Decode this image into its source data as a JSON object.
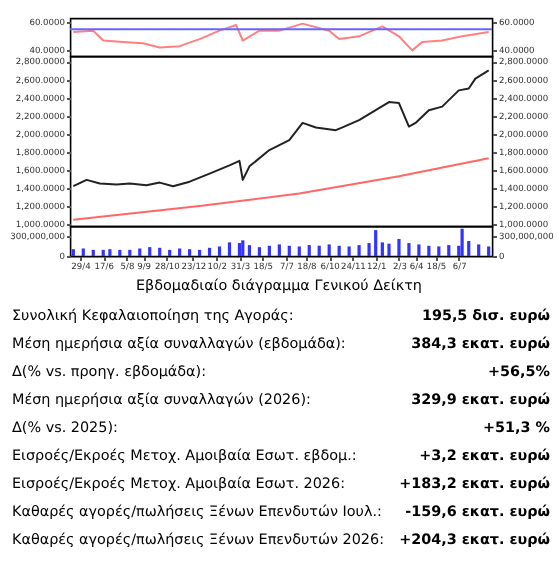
{
  "chart_data": [
    {
      "type": "line",
      "tick_labels": "y",
      "xlim": [
        "2024-04-08",
        "2026-09-14"
      ],
      "ylim": [
        36,
        63
      ],
      "yticks": [
        {
          "value": 40,
          "label": "40.0000"
        },
        {
          "value": 60,
          "label": "60.0000"
        }
      ],
      "y2lim": [
        36,
        63
      ],
      "y2ticks": [
        {
          "value": 40,
          "label": "40.0000"
        },
        {
          "value": 60,
          "label": "60.0000"
        }
      ],
      "ref_lines": [
        {
          "axis": "y",
          "value": 55,
          "color": "#6666ff"
        }
      ],
      "series": [
        {
          "color": "#ff8080",
          "x": [
            "2024-04-15",
            "2024-05-27",
            "2024-06-17",
            "2024-07-29",
            "2024-09-09",
            "2024-10-14",
            "2024-11-25",
            "2025-01-06",
            "2025-02-17",
            "2025-03-24",
            "2025-04-07",
            "2025-05-12",
            "2025-06-23",
            "2025-08-11",
            "2025-10-06",
            "2025-10-27",
            "2025-12-08",
            "2026-01-26",
            "2026-03-02",
            "2026-03-30",
            "2026-04-20",
            "2026-06-01",
            "2026-07-13",
            "2026-09-07"
          ],
          "values": [
            53,
            54,
            47,
            46,
            45,
            42,
            43,
            48,
            54,
            58,
            47,
            54,
            54,
            59,
            54,
            48,
            50,
            57,
            50,
            40,
            46,
            47,
            50,
            53
          ]
        }
      ]
    },
    {
      "type": "line",
      "tick_labels": "y",
      "xlim": [
        "2024-04-08",
        "2026-09-14"
      ],
      "ylim": [
        980,
        2860
      ],
      "yticks": [
        {
          "value": 1000,
          "label": "1,000.0000"
        },
        {
          "value": 1200,
          "label": "1,200.0000"
        },
        {
          "value": 1400,
          "label": "1,400.0000"
        },
        {
          "value": 1600,
          "label": "1,600.0000"
        },
        {
          "value": 1800,
          "label": "1,800.0000"
        },
        {
          "value": 2000,
          "label": "2,000.0000"
        },
        {
          "value": 2200,
          "label": "2,200.0000"
        },
        {
          "value": 2400,
          "label": "2,400.0000"
        },
        {
          "value": 2600,
          "label": "2,600.0000"
        },
        {
          "value": 2800,
          "label": "2,800.0000"
        }
      ],
      "y2lim": [
        980,
        2860
      ],
      "y2ticks": [
        {
          "value": 1000,
          "label": "1,000.0000"
        },
        {
          "value": 1200,
          "label": "1,200.0000"
        },
        {
          "value": 1400,
          "label": "1,400.0000"
        },
        {
          "value": 1600,
          "label": "1,600.0000"
        },
        {
          "value": 1800,
          "label": "1,800.0000"
        },
        {
          "value": 2000,
          "label": "2,000.0000"
        },
        {
          "value": 2200,
          "label": "2,200.0000"
        },
        {
          "value": 2400,
          "label": "2,400.0000"
        },
        {
          "value": 2600,
          "label": "2,600.0000"
        },
        {
          "value": 2800,
          "label": "2,800.0000"
        }
      ],
      "series": [
        {
          "color": "#ff6666",
          "x": [
            "2024-04-15",
            "2025-01-06",
            "2025-08-04",
            "2026-03-02",
            "2026-09-07"
          ],
          "values": [
            1050,
            1200,
            1340,
            1530,
            1730
          ]
        },
        {
          "color": "#222222",
          "x": [
            "2024-04-15",
            "2024-05-13",
            "2024-06-10",
            "2024-07-15",
            "2024-08-12",
            "2024-09-16",
            "2024-10-14",
            "2024-11-11",
            "2024-12-16",
            "2025-01-27",
            "2025-03-10",
            "2025-03-31",
            "2025-04-07",
            "2025-04-21",
            "2025-06-02",
            "2025-07-14",
            "2025-08-11",
            "2025-09-08",
            "2025-10-20",
            "2025-11-03",
            "2025-12-08",
            "2026-02-09",
            "2026-03-02",
            "2026-03-23",
            "2026-04-06",
            "2026-05-04",
            "2026-06-01",
            "2026-07-06",
            "2026-07-27",
            "2026-08-10",
            "2026-09-07"
          ],
          "values": [
            1420,
            1490,
            1450,
            1440,
            1450,
            1430,
            1460,
            1420,
            1470,
            1560,
            1650,
            1700,
            1490,
            1640,
            1820,
            1930,
            2120,
            2070,
            2040,
            2070,
            2150,
            2350,
            2340,
            2080,
            2120,
            2260,
            2300,
            2480,
            2500,
            2610,
            2700
          ]
        }
      ]
    },
    {
      "type": "bar",
      "xlim": [
        "2024-04-08",
        "2026-09-14"
      ],
      "ylim": [
        0,
        440000000
      ],
      "yticks": [
        0,
        {
          "value": 300000000,
          "label": "300,000,000"
        }
      ],
      "y2lim": [
        0,
        440000000
      ],
      "y2ticks": [
        0,
        {
          "value": 300000000,
          "label": "300,000,000"
        }
      ],
      "xticks": [
        {
          "value": "2024-04-29",
          "label": "29/4"
        },
        {
          "value": "2024-06-17",
          "label": "17/6"
        },
        {
          "value": "2024-08-05",
          "label": "5/8"
        },
        {
          "value": "2024-09-09",
          "label": "9/9"
        },
        {
          "value": "2024-10-28",
          "label": "28/10"
        },
        {
          "value": "2024-12-23",
          "label": "23/12"
        },
        {
          "value": "2025-02-10",
          "label": "10/2"
        },
        {
          "value": "2025-03-31",
          "label": "31/3"
        },
        {
          "value": "2025-05-18",
          "label": "18/5"
        },
        {
          "value": "2025-07-07",
          "label": "7/7"
        },
        {
          "value": "2025-08-18",
          "label": "18/8"
        },
        {
          "value": "2025-10-06",
          "label": "6/10"
        },
        {
          "value": "2025-11-24",
          "label": "24/11"
        },
        {
          "value": "2026-01-12",
          "label": "12/1"
        },
        {
          "value": "2026-03-02",
          "label": "2/3"
        },
        {
          "value": "2026-04-06",
          "label": "6/4"
        },
        {
          "value": "2026-05-18",
          "label": "18/5"
        },
        {
          "value": "2026-07-06",
          "label": "6/7"
        }
      ],
      "series": [
        {
          "color": "#3333ff",
          "x": [
            "2024-04-15",
            "2024-05-06",
            "2024-05-27",
            "2024-06-17",
            "2024-07-01",
            "2024-07-22",
            "2024-08-12",
            "2024-09-02",
            "2024-09-23",
            "2024-10-14",
            "2024-11-04",
            "2024-11-25",
            "2024-12-16",
            "2025-01-06",
            "2025-01-27",
            "2025-02-17",
            "2025-03-10",
            "2025-03-31",
            "2025-04-07",
            "2025-04-21",
            "2025-05-12",
            "2025-06-02",
            "2025-06-23",
            "2025-07-14",
            "2025-08-04",
            "2025-08-25",
            "2025-09-15",
            "2025-10-06",
            "2025-10-27",
            "2025-11-17",
            "2025-12-08",
            "2025-12-29",
            "2026-01-12",
            "2026-01-26",
            "2026-02-09",
            "2026-03-02",
            "2026-03-23",
            "2026-04-13",
            "2026-05-04",
            "2026-05-25",
            "2026-06-15",
            "2026-07-06",
            "2026-07-13",
            "2026-07-27",
            "2026-08-17",
            "2026-09-07"
          ],
          "values": [
            100000000,
            110000000,
            90000000,
            90000000,
            100000000,
            90000000,
            90000000,
            110000000,
            130000000,
            120000000,
            90000000,
            110000000,
            100000000,
            90000000,
            120000000,
            140000000,
            200000000,
            190000000,
            230000000,
            160000000,
            130000000,
            150000000,
            170000000,
            150000000,
            140000000,
            160000000,
            150000000,
            170000000,
            150000000,
            140000000,
            160000000,
            190000000,
            380000000,
            200000000,
            180000000,
            250000000,
            190000000,
            170000000,
            150000000,
            140000000,
            160000000,
            150000000,
            400000000,
            220000000,
            170000000,
            140000000
          ]
        }
      ]
    },
    {
      "type": "other",
      "title": "Εβδομαδιαίο διάγραμμα Γενικού Δείκτη",
      "annotations": [
        "Συνολική Κεφαλαιοποίηση της Αγοράς:",
        "195,5 δισ. ευρώ",
        "Μέση ημερήσια αξία συναλλαγών (εβδομάδα):",
        "384,3 εκατ. ευρώ",
        "Δ(% vs. προηγ. εβδομάδα):",
        "+56,5%",
        "Μέση ημερήσια αξία συναλλαγών (2026):",
        "329,9 εκατ. ευρώ",
        "Δ(% vs. 2025):",
        "+51,3 %",
        "Εισροές/Εκροές Μετοχ. Αμοιβαία Εσωτ. εβδομ.:",
        "+3,2 εκατ. ευρώ",
        "Εισροές/Εκροές Μετοχ. Αμοιβαία Εσωτ. 2026:",
        "+183,2 εκατ. ευρώ",
        "Καθαρές αγορές/πωλήσεις Ξένων Επενδυτών Ιουλ.:",
        "-159,6 εκατ. ευρώ",
        "Καθαρές αγορές/πωλήσεις Ξένων Επενδυτών 2026:",
        "+204,3 εκατ. ευρώ"
      ]
    }
  ]
}
